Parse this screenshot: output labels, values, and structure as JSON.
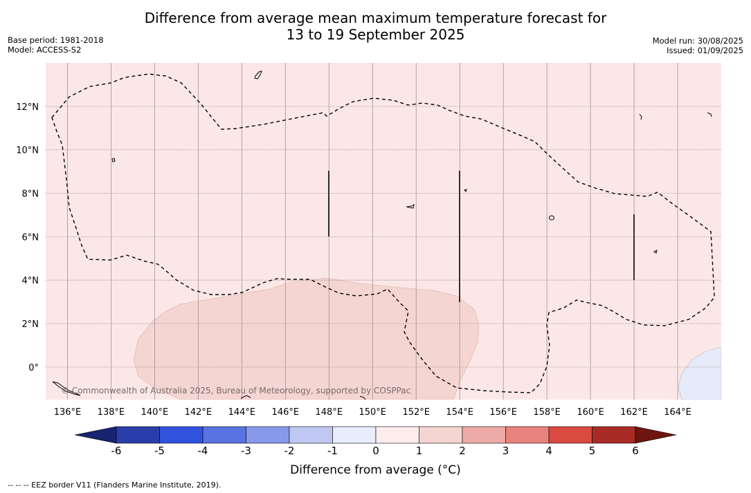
{
  "title": {
    "line1": "Difference from average mean maximum temperature forecast for",
    "line2": "13 to 19 September 2025"
  },
  "info_left": {
    "base_period": "Base period: 1981-2018",
    "model": "Model: ACCESS-S2"
  },
  "info_right": {
    "model_run": "Model run: 30/08/2025",
    "issued": "Issued: 01/09/2025"
  },
  "map": {
    "lon_range": [
      135,
      166
    ],
    "lat_range": [
      -1.5,
      14
    ],
    "lon_ticks": [
      "136°E",
      "138°E",
      "140°E",
      "142°E",
      "144°E",
      "146°E",
      "148°E",
      "150°E",
      "152°E",
      "154°E",
      "156°E",
      "158°E",
      "160°E",
      "162°E",
      "164°E"
    ],
    "lat_ticks": [
      "12°N",
      "10°N",
      "8°N",
      "6°N",
      "4°N",
      "2°N",
      "0°"
    ],
    "copyright": "© Commonwealth of Australia 2025, Bureau of Meteorology, supported by COSPPac",
    "colors": {
      "background": "#fbe8e6",
      "warm_zone": "#f4d5d2",
      "cool_zone": "#e6ebfa"
    }
  },
  "colorbar": {
    "label": "Difference from average (°C)",
    "ticks": [
      "-6",
      "-5",
      "-4",
      "-3",
      "-2",
      "-1",
      "0",
      "1",
      "2",
      "3",
      "4",
      "5",
      "6"
    ],
    "colors": [
      "#2a3ea9",
      "#3253e0",
      "#5873e2",
      "#8799ea",
      "#c0c8f2",
      "#e9ecfa",
      "#fcedec",
      "#f4d5d2",
      "#edaaa6",
      "#e8837d",
      "#d94a40",
      "#a92b25"
    ],
    "extend_low": "#172470",
    "extend_high": "#6e1510"
  },
  "footnote": "-- -- -- EEZ border V11 (Flanders Marine Institute, 2019)."
}
